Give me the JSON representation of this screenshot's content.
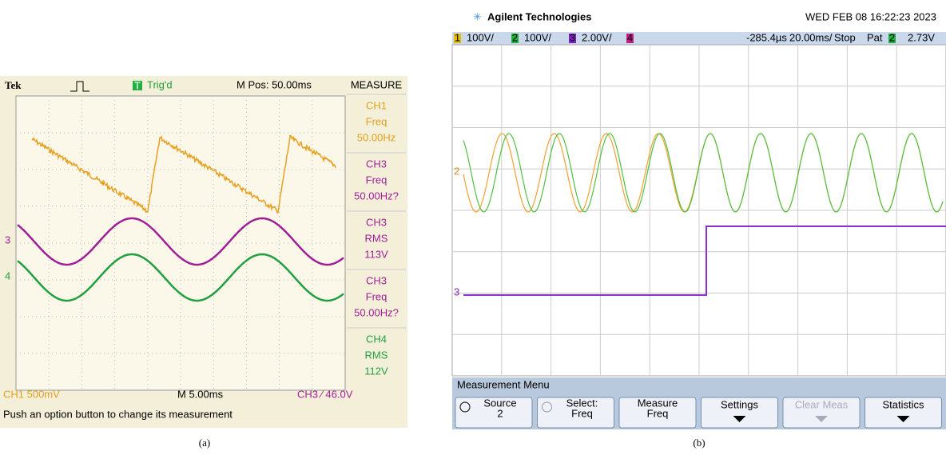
{
  "panel_a": {
    "brand": "Tek",
    "trigger_status": "Trig'd",
    "trigger_icon": "T",
    "m_pos": "M Pos: 50.00ms",
    "menu_title": "MEASURE",
    "measurements": [
      {
        "channel": "CH1",
        "type": "Freq",
        "value": "50.00Hz"
      },
      {
        "channel": "CH3",
        "type": "Freq",
        "value": "50.00Hz?"
      },
      {
        "channel": "CH3",
        "type": "RMS",
        "value": "113V"
      },
      {
        "channel": "CH3",
        "type": "Freq",
        "value": "50.00Hz?"
      },
      {
        "channel": "CH4",
        "type": "RMS",
        "value": "112V"
      }
    ],
    "ch1_scale": "CH1  500mV",
    "timebase": "M 5.00ms",
    "trigger_setting": "CH3 ⁄ 46.0V",
    "help": "Push an option button to change its measurement",
    "markers": [
      "3",
      "4"
    ],
    "caption": "(a)"
  },
  "panel_b": {
    "brand": "Agilent Technologies",
    "datetime": "WED FEB 08 16:22:23 2023",
    "channel_numbers": [
      "1",
      "2",
      "3",
      "4"
    ],
    "channel_scales": [
      "100V/",
      "100V/",
      "2.00V/"
    ],
    "delay": "-285.4µs",
    "time_scale": "20.00ms/",
    "run_state": "Stop",
    "trigger_mode": "Pat",
    "trigger_channel": "2",
    "trigger_level": "2.73V",
    "markers": [
      "2",
      "3"
    ],
    "menu_title": "Measurement Menu",
    "buttons": [
      [
        "Source",
        "2"
      ],
      [
        "Select:",
        "Freq"
      ],
      [
        "Measure",
        "Freq"
      ],
      [
        "Settings"
      ],
      [
        "Clear Meas"
      ],
      [
        "Statistics"
      ]
    ],
    "caption": "(b)"
  }
}
